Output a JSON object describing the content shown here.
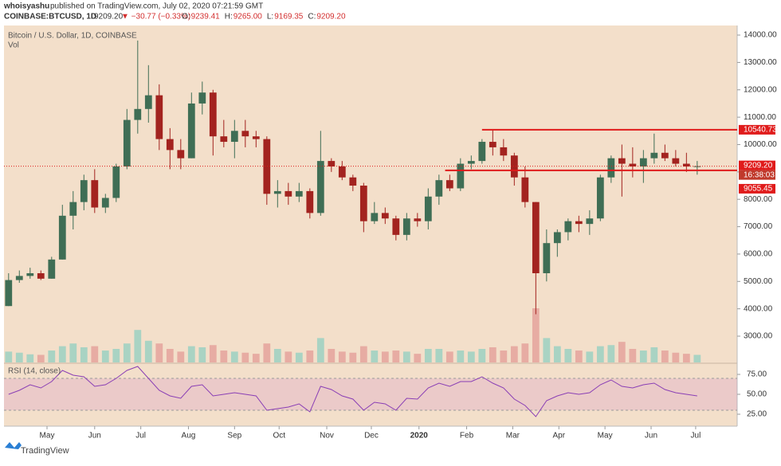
{
  "chart_data": {
    "type": "candlestick",
    "header": {
      "author": "whoisyashu",
      "published": "published on TradingView.com, July 02, 2020 07:21:59 GMT",
      "symbol": "COINBASE:BTCUSD, 1D",
      "last": "9209.20",
      "change": "▼ −30.77 (−0.33%)",
      "ohlc": [
        {
          "k": "O:",
          "v": "9239.41"
        },
        {
          "k": "H:",
          "v": "9265.00"
        },
        {
          "k": "L:",
          "v": "9169.35"
        },
        {
          "k": "C:",
          "v": "9209.20"
        }
      ]
    },
    "title": "Bitcoin / U.S. Dollar, 1D, COINBASE",
    "volume_label": "Vol",
    "up_color": "#3f6e55",
    "down_color": "#a3231f",
    "volume_up_color": "#a9d3c3",
    "volume_down_color": "#e7aca3",
    "xlim": [
      0,
      477
    ],
    "xticks": [
      {
        "value": 28,
        "label": "May"
      },
      {
        "value": 59,
        "label": "Jun"
      },
      {
        "value": 89,
        "label": "Jul"
      },
      {
        "value": 120,
        "label": "Aug"
      },
      {
        "value": 150,
        "label": "Sep"
      },
      {
        "value": 179,
        "label": "Oct"
      },
      {
        "value": 210,
        "label": "Nov"
      },
      {
        "value": 239,
        "label": "Dec"
      },
      {
        "value": 270,
        "label": "2020"
      },
      {
        "value": 301,
        "label": "Feb"
      },
      {
        "value": 331,
        "label": "Mar"
      },
      {
        "value": 361,
        "label": "Apr"
      },
      {
        "value": 391,
        "label": "May"
      },
      {
        "value": 421,
        "label": "Jun"
      },
      {
        "value": 450,
        "label": "Jul"
      }
    ],
    "ylim": [
      2040,
      14350
    ],
    "yticks": [
      {
        "value": 3000,
        "label": "3000.00"
      },
      {
        "value": 4000,
        "label": "4000.00"
      },
      {
        "value": 5000,
        "label": "5000.00"
      },
      {
        "value": 6000,
        "label": "6000.00"
      },
      {
        "value": 7000,
        "label": "7000.00"
      },
      {
        "value": 8000,
        "label": "8000.00"
      },
      {
        "value": 9000,
        "label": "9000.00"
      },
      {
        "value": 10000,
        "label": "10000.00"
      },
      {
        "value": 11000,
        "label": "11000.00"
      },
      {
        "value": 12000,
        "label": "12000.00"
      },
      {
        "value": 13000,
        "label": "13000.00"
      },
      {
        "value": 14000,
        "label": "14000.00"
      }
    ],
    "candles": {
      "x": [
        3,
        10,
        17,
        24,
        31,
        38,
        45,
        52,
        59,
        66,
        73,
        80,
        87,
        94,
        101,
        108,
        115,
        122,
        129,
        136,
        143,
        150,
        157,
        164,
        171,
        178,
        185,
        192,
        199,
        206,
        213,
        220,
        227,
        234,
        241,
        248,
        255,
        262,
        269,
        276,
        283,
        290,
        297,
        304,
        311,
        318,
        325,
        332,
        339,
        346,
        353,
        360,
        367,
        374,
        381,
        388,
        395,
        402,
        409,
        416,
        423,
        430,
        437,
        444,
        451
      ],
      "open": [
        4100,
        5050,
        5200,
        5300,
        5100,
        5800,
        7400,
        7900,
        8700,
        7700,
        8050,
        9200,
        10900,
        11300,
        11800,
        10200,
        9800,
        9500,
        11500,
        11900,
        10300,
        10100,
        10500,
        10300,
        10200,
        8200,
        8300,
        8100,
        8300,
        7500,
        9400,
        9200,
        8800,
        8500,
        7200,
        7500,
        7300,
        6700,
        7300,
        7200,
        8100,
        8700,
        8400,
        9300,
        9400,
        10100,
        9900,
        9600,
        8800,
        7900,
        5300,
        6400,
        6800,
        7200,
        7100,
        7300,
        8800,
        9500,
        9300,
        9200,
        9500,
        9700,
        9500,
        9300,
        9200
      ],
      "high": [
        5300,
        5400,
        5500,
        5400,
        5900,
        7800,
        8300,
        8900,
        9100,
        8200,
        9300,
        11300,
        13800,
        12900,
        12200,
        10600,
        10200,
        11900,
        12300,
        12000,
        10900,
        10900,
        10900,
        10500,
        10300,
        8700,
        8600,
        8600,
        8400,
        10500,
        9500,
        9400,
        8900,
        8600,
        7900,
        7700,
        7400,
        7500,
        7500,
        8400,
        8900,
        8900,
        9500,
        9600,
        10200,
        10540,
        10200,
        9700,
        9200,
        7900,
        6900,
        6900,
        7300,
        7400,
        7600,
        8900,
        9600,
        10000,
        9900,
        9800,
        10400,
        10000,
        9800,
        9700,
        9400
      ],
      "low": [
        4100,
        4950,
        5100,
        5050,
        5100,
        5800,
        6900,
        7600,
        7500,
        7500,
        7900,
        9100,
        10400,
        10800,
        9800,
        9100,
        9100,
        9500,
        11100,
        9600,
        9900,
        9500,
        9900,
        9900,
        7800,
        7700,
        7800,
        7900,
        7300,
        7400,
        9000,
        8700,
        8300,
        6800,
        7100,
        7100,
        6500,
        6500,
        7000,
        6900,
        7800,
        8300,
        8300,
        9100,
        9300,
        9600,
        9400,
        8500,
        7700,
        3800,
        5000,
        5900,
        6500,
        6800,
        6700,
        7200,
        8600,
        8100,
        8800,
        8600,
        9300,
        9400,
        9200,
        9000,
        8900
      ],
      "close": [
        5050,
        5200,
        5300,
        5100,
        5800,
        7400,
        7900,
        8700,
        7700,
        8050,
        9200,
        10900,
        11300,
        11800,
        10200,
        9800,
        9500,
        11500,
        11900,
        10300,
        10100,
        10500,
        10300,
        10200,
        8200,
        8300,
        8100,
        8300,
        7500,
        9400,
        9200,
        8800,
        8500,
        7200,
        7500,
        7300,
        6700,
        7300,
        7200,
        8100,
        8700,
        8400,
        9300,
        9400,
        10100,
        9900,
        9600,
        8800,
        7900,
        5300,
        6400,
        6800,
        7200,
        7100,
        7300,
        8800,
        9500,
        9300,
        9200,
        9500,
        9700,
        9500,
        9300,
        9200,
        9209.2
      ],
      "volume": [
        20,
        18,
        15,
        14,
        22,
        30,
        35,
        28,
        30,
        22,
        25,
        35,
        60,
        40,
        35,
        25,
        20,
        30,
        28,
        32,
        22,
        20,
        18,
        16,
        35,
        25,
        20,
        18,
        22,
        45,
        25,
        20,
        18,
        30,
        22,
        20,
        22,
        20,
        16,
        25,
        25,
        20,
        22,
        20,
        25,
        28,
        22,
        30,
        35,
        100,
        45,
        30,
        25,
        22,
        20,
        30,
        32,
        38,
        25,
        22,
        28,
        22,
        18,
        16,
        14
      ]
    },
    "levels": [
      {
        "value": 10540.73,
        "label": "10540.73",
        "x_start": 311,
        "style": "solid"
      },
      {
        "value": 9209.2,
        "label": "9209.20",
        "style": "dotted",
        "note": "16:38:03"
      },
      {
        "value": 9055.45,
        "label": "9055.45",
        "x_start": 287,
        "style": "solid"
      }
    ],
    "level_color": "#e01b1b",
    "rsi": {
      "name": "RSI (14, close)",
      "color": "#8a3fb5",
      "band": [
        30,
        70
      ],
      "ylim": [
        10,
        87
      ],
      "yticks": [
        {
          "value": 75,
          "label": "75.00"
        },
        {
          "value": 50,
          "label": "50.00"
        },
        {
          "value": 25,
          "label": "25.00"
        }
      ],
      "values": [
        50,
        55,
        62,
        58,
        66,
        80,
        74,
        72,
        60,
        62,
        70,
        80,
        85,
        70,
        55,
        48,
        45,
        60,
        62,
        48,
        50,
        52,
        50,
        48,
        30,
        32,
        34,
        38,
        28,
        60,
        56,
        48,
        44,
        30,
        40,
        38,
        30,
        45,
        44,
        58,
        64,
        60,
        66,
        66,
        72,
        64,
        58,
        44,
        36,
        22,
        42,
        48,
        52,
        50,
        52,
        62,
        68,
        60,
        58,
        62,
        64,
        56,
        52,
        50,
        48
      ]
    },
    "footer": "TradingView"
  }
}
